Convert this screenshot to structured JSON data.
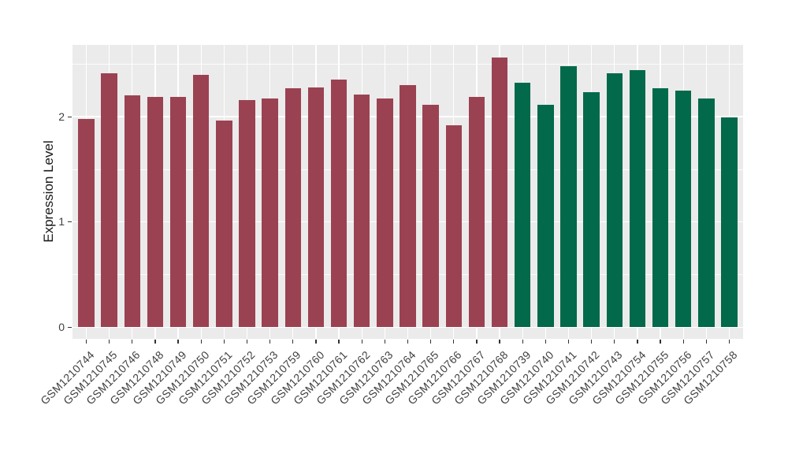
{
  "chart_data": {
    "type": "bar",
    "title": "",
    "xlabel": "",
    "ylabel": "Expression Level",
    "ylim": [
      0,
      2.68
    ],
    "yticks": [
      0,
      1,
      2
    ],
    "minor_yticks": [
      0.5,
      1.5,
      2.5
    ],
    "grid": true,
    "legend_position": "none",
    "panel_background": "#EBEBEB",
    "gridline_color": "#FFFFFF",
    "tick_color": "#333333",
    "axis_text_color": "#404040",
    "group_colors": {
      "maroon": "#9B4252",
      "green": "#02694B"
    },
    "categories": [
      "GSM1210744",
      "GSM1210745",
      "GSM1210746",
      "GSM1210748",
      "GSM1210749",
      "GSM1210750",
      "GSM1210751",
      "GSM1210752",
      "GSM1210753",
      "GSM1210759",
      "GSM1210760",
      "GSM1210761",
      "GSM1210762",
      "GSM1210763",
      "GSM1210764",
      "GSM1210765",
      "GSM1210766",
      "GSM1210767",
      "GSM1210768",
      "GSM1210739",
      "GSM1210740",
      "GSM1210741",
      "GSM1210742",
      "GSM1210743",
      "GSM1210754",
      "GSM1210755",
      "GSM1210756",
      "GSM1210757",
      "GSM1210758"
    ],
    "values": [
      1.98,
      2.41,
      2.2,
      2.19,
      2.19,
      2.4,
      1.96,
      2.16,
      2.17,
      2.27,
      2.28,
      2.35,
      2.21,
      2.17,
      2.3,
      2.11,
      1.92,
      2.19,
      2.56,
      2.32,
      2.11,
      2.48,
      2.23,
      2.41,
      2.44,
      2.27,
      2.25,
      2.17,
      1.99
    ],
    "colors": [
      "#9B4252",
      "#9B4252",
      "#9B4252",
      "#9B4252",
      "#9B4252",
      "#9B4252",
      "#9B4252",
      "#9B4252",
      "#9B4252",
      "#9B4252",
      "#9B4252",
      "#9B4252",
      "#9B4252",
      "#9B4252",
      "#9B4252",
      "#9B4252",
      "#9B4252",
      "#9B4252",
      "#9B4252",
      "#02694B",
      "#02694B",
      "#02694B",
      "#02694B",
      "#02694B",
      "#02694B",
      "#02694B",
      "#02694B",
      "#02694B",
      "#02694B"
    ]
  }
}
